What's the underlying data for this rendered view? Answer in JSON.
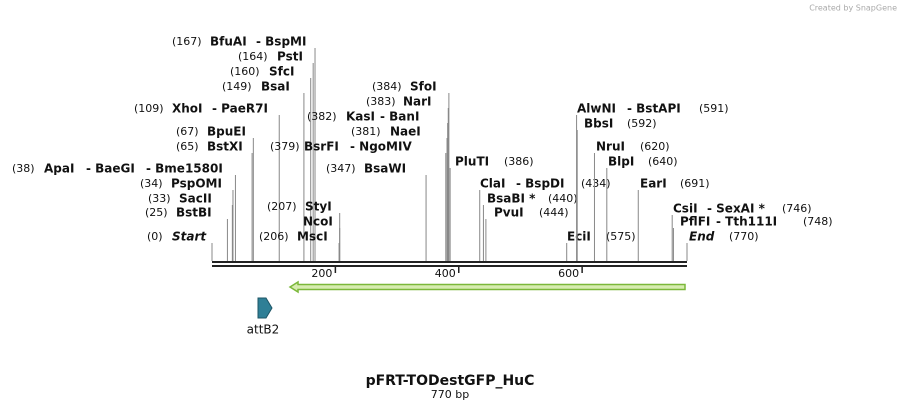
{
  "watermark": "Created by SnapGene",
  "enzymes": [
    {
      "position": "(167)",
      "names": [
        "BfuAI",
        "- BspMI"
      ]
    },
    {
      "position": "(164)",
      "names": [
        "PstI"
      ]
    },
    {
      "position": "(160)",
      "names": [
        "SfcI"
      ]
    },
    {
      "position": "(149)",
      "names": [
        "BsaI"
      ]
    },
    {
      "position": "(384)",
      "names": [
        "SfoI"
      ]
    },
    {
      "position": "(383)",
      "names": [
        "NarI"
      ]
    },
    {
      "position": "(109)",
      "names": [
        "XhoI",
        "- PaeR7I"
      ]
    },
    {
      "position": "(382)",
      "names": [
        "KasI",
        "- BanI"
      ]
    },
    {
      "position": "(381)",
      "names": [
        "NaeI"
      ]
    },
    {
      "position": "(67)",
      "names": [
        "BpuEI"
      ]
    },
    {
      "position": "(65)",
      "names": [
        "BstXI"
      ]
    },
    {
      "position": "(379)",
      "names": [
        "BsrFI",
        "- NgoMIV"
      ]
    },
    {
      "position": "(347)",
      "names": [
        "BsaWI"
      ]
    },
    {
      "position": "(38)",
      "names": [
        "ApaI",
        "- BaeGI",
        "- Bme1580I"
      ]
    },
    {
      "position": "(34)",
      "names": [
        "PspOMI"
      ]
    },
    {
      "position": "(33)",
      "names": [
        "SacII"
      ]
    },
    {
      "position": "(25)",
      "names": [
        "BstBI"
      ]
    },
    {
      "position": "(207)",
      "names": [
        "StyI"
      ]
    },
    {
      "names": [
        "NcoI"
      ]
    },
    {
      "position": "(206)",
      "names": [
        "MscI"
      ]
    },
    {
      "position": "(0)",
      "names": [
        "Start"
      ]
    },
    {
      "position": "(386)",
      "names": [
        "PluTI"
      ]
    },
    {
      "position": "(434)",
      "names": [
        "ClaI",
        "- BspDI"
      ]
    },
    {
      "position": "(440)",
      "names": [
        "BsaBI *"
      ]
    },
    {
      "position": "(444)",
      "names": [
        "PvuI"
      ]
    },
    {
      "position": "(575)",
      "names": [
        "EciI"
      ]
    },
    {
      "position": "(591)",
      "names": [
        "AlwNI",
        "- BstAPI"
      ]
    },
    {
      "position": "(592)",
      "names": [
        "BbsI"
      ]
    },
    {
      "position": "(620)",
      "names": [
        "NruI"
      ]
    },
    {
      "position": "(640)",
      "names": [
        "BlpI"
      ]
    },
    {
      "position": "(691)",
      "names": [
        "EarI"
      ]
    },
    {
      "position": "(746)",
      "names": [
        "CsiI",
        "- SexAI *"
      ]
    },
    {
      "position": "(748)",
      "names": [
        "PflFI",
        "- Tth111I"
      ]
    },
    {
      "position": "(770)",
      "names": [
        "End"
      ]
    }
  ],
  "ruler": {
    "ticks": [
      200,
      400,
      600
    ]
  },
  "features": [
    {
      "label": "attB2"
    }
  ],
  "title": "pFRT-TODestGFP_HuC",
  "length": "770 bp"
}
